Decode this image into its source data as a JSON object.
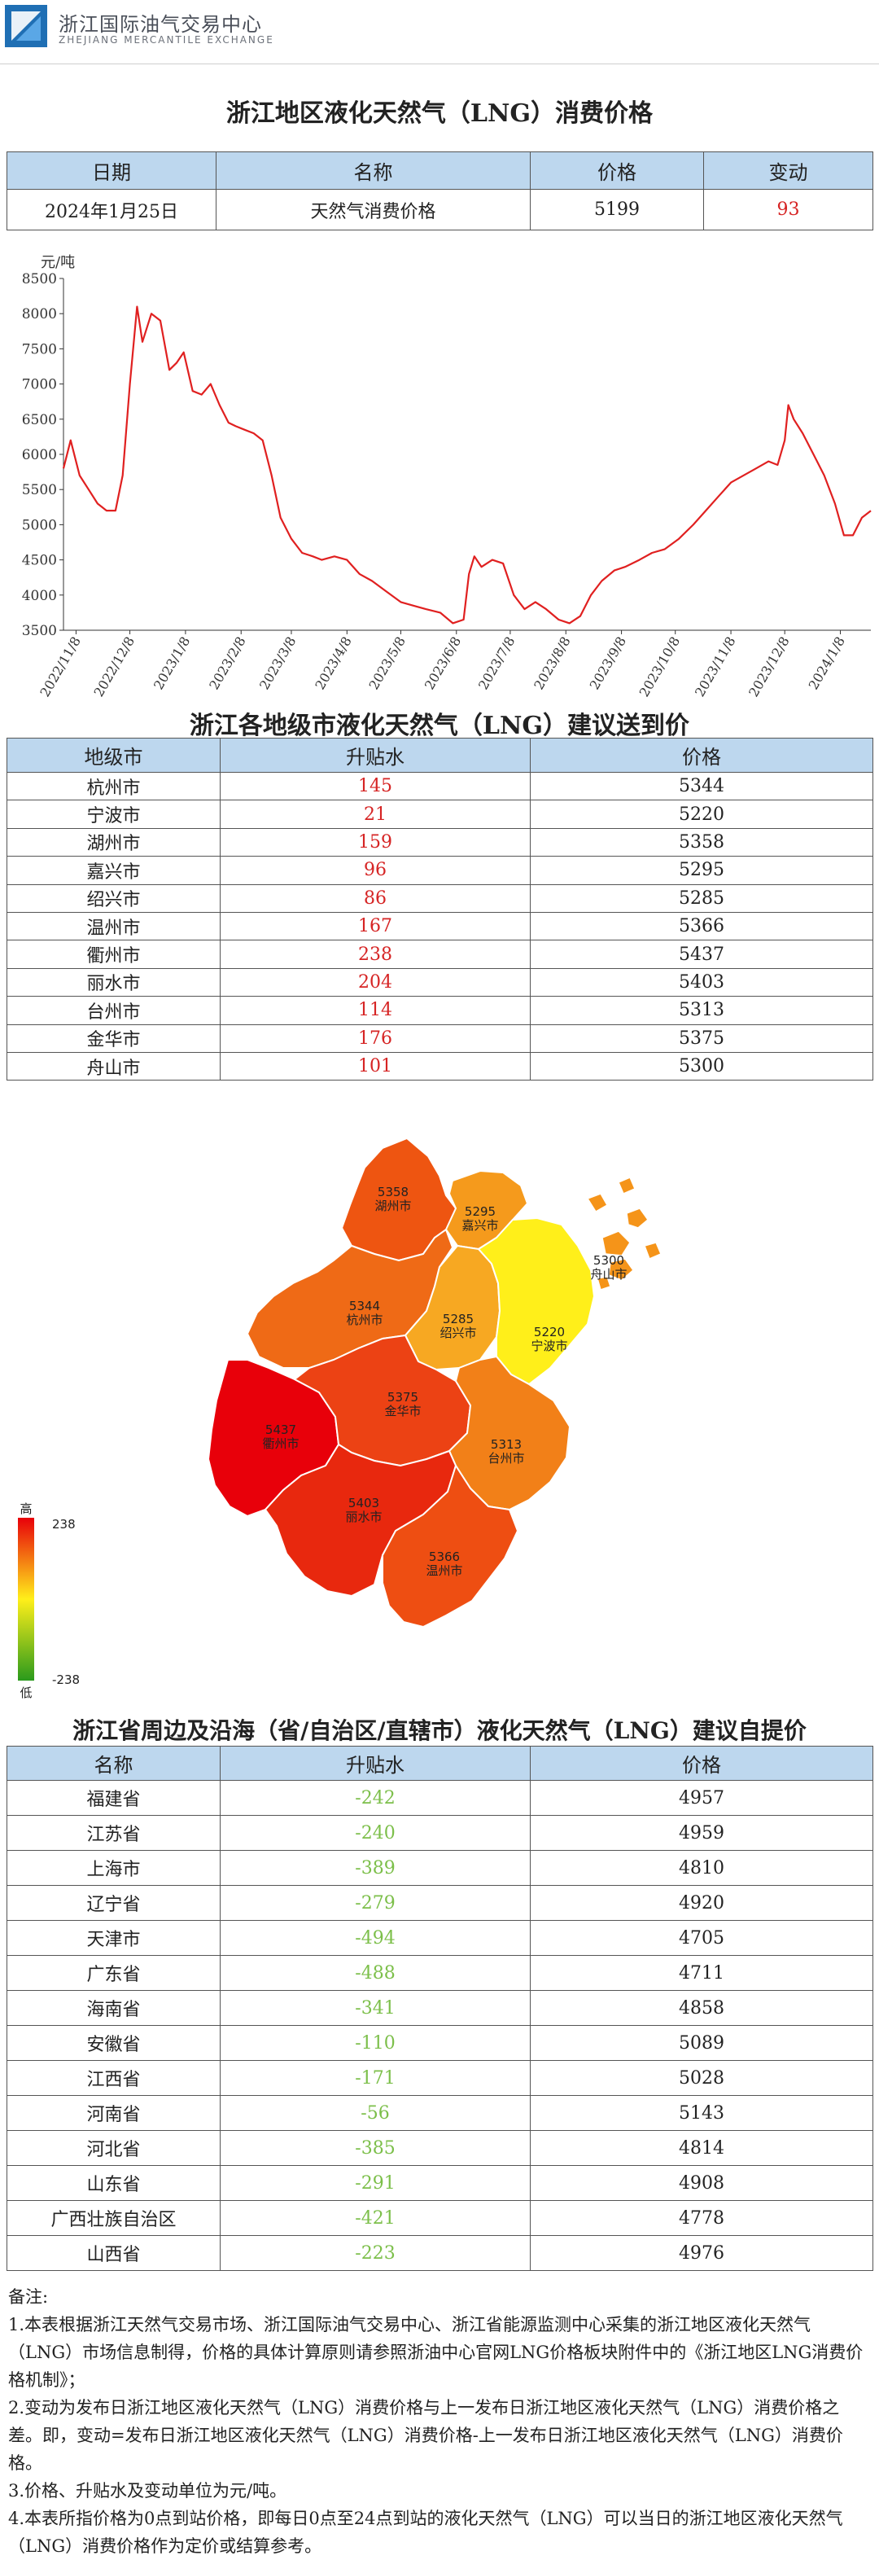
{
  "header": {
    "org_cn": "浙江国际油气交易中心",
    "org_en": "ZHEJIANG MERCANTILE EXCHANGE",
    "logo_color": "#1f6fb4"
  },
  "section1": {
    "title": "浙江地区液化天然气（LNG）消费价格",
    "headers": [
      "日期",
      "名称",
      "价格",
      "变动"
    ],
    "row": {
      "date": "2024年1月25日",
      "name": "天然气消费价格",
      "price": "5199",
      "change": "93"
    }
  },
  "chart_data": {
    "type": "line",
    "ylabel": "元/吨",
    "ylim": [
      3500,
      8500
    ],
    "yticks": [
      3500,
      4000,
      4500,
      5000,
      5500,
      6000,
      6500,
      7000,
      7500,
      8000,
      8500
    ],
    "xticks": [
      "2022/11/8",
      "2022/12/8",
      "2023/1/8",
      "2023/2/8",
      "2023/3/8",
      "2023/4/8",
      "2023/5/8",
      "2023/6/8",
      "2023/7/8",
      "2023/8/8",
      "2023/9/8",
      "2023/10/8",
      "2023/11/8",
      "2023/12/8",
      "2024/1/8"
    ],
    "color": "#e02020",
    "series": [
      {
        "name": "",
        "x": [
          "2022/11/1",
          "2022/11/5",
          "2022/11/10",
          "2022/11/15",
          "2022/11/20",
          "2022/11/25",
          "2022/11/30",
          "2022/12/4",
          "2022/12/8",
          "2022/12/12",
          "2022/12/15",
          "2022/12/20",
          "2022/12/25",
          "2022/12/30",
          "2023/1/3",
          "2023/1/7",
          "2023/1/12",
          "2023/1/17",
          "2023/1/22",
          "2023/1/27",
          "2023/2/1",
          "2023/2/5",
          "2023/2/10",
          "2023/2/15",
          "2023/2/20",
          "2023/2/25",
          "2023/3/2",
          "2023/3/8",
          "2023/3/14",
          "2023/3/20",
          "2023/3/25",
          "2023/4/1",
          "2023/4/8",
          "2023/4/15",
          "2023/4/22",
          "2023/4/30",
          "2023/5/8",
          "2023/5/15",
          "2023/5/22",
          "2023/5/30",
          "2023/6/6",
          "2023/6/12",
          "2023/6/15",
          "2023/6/18",
          "2023/6/22",
          "2023/6/28",
          "2023/7/4",
          "2023/7/10",
          "2023/7/16",
          "2023/7/22",
          "2023/7/28",
          "2023/8/4",
          "2023/8/10",
          "2023/8/16",
          "2023/8/22",
          "2023/8/28",
          "2023/9/4",
          "2023/9/10",
          "2023/9/18",
          "2023/9/25",
          "2023/10/2",
          "2023/10/10",
          "2023/10/18",
          "2023/10/25",
          "2023/11/1",
          "2023/11/8",
          "2023/11/15",
          "2023/11/22",
          "2023/11/29",
          "2023/12/4",
          "2023/12/8",
          "2023/12/10",
          "2023/12/13",
          "2023/12/18",
          "2023/12/24",
          "2023/12/30",
          "2024/1/5",
          "2024/1/10",
          "2024/1/15",
          "2024/1/20",
          "2024/1/25"
        ],
        "y": [
          5800,
          6200,
          5700,
          5500,
          5300,
          5200,
          5200,
          5700,
          7000,
          8100,
          7600,
          8000,
          7900,
          7200,
          7300,
          7450,
          6900,
          6850,
          7000,
          6700,
          6450,
          6400,
          6350,
          6300,
          6200,
          5700,
          5100,
          4800,
          4600,
          4550,
          4500,
          4550,
          4500,
          4300,
          4200,
          4050,
          3900,
          3850,
          3800,
          3750,
          3600,
          3650,
          4300,
          4550,
          4400,
          4500,
          4450,
          4000,
          3800,
          3900,
          3800,
          3650,
          3600,
          3700,
          4000,
          4200,
          4350,
          4400,
          4500,
          4600,
          4650,
          4800,
          5000,
          5200,
          5400,
          5600,
          5700,
          5800,
          5900,
          5850,
          6200,
          6700,
          6500,
          6300,
          6000,
          5700,
          5300,
          4850,
          4850,
          5100,
          5199
        ]
      }
    ]
  },
  "section2": {
    "title": "浙江各地级市液化天然气（LNG）建议送到价",
    "headers": [
      "地级市",
      "升贴水",
      "价格"
    ],
    "rows": [
      {
        "name": "杭州市",
        "diff": "145",
        "price": "5344"
      },
      {
        "name": "宁波市",
        "diff": "21",
        "price": "5220"
      },
      {
        "name": "湖州市",
        "diff": "159",
        "price": "5358"
      },
      {
        "name": "嘉兴市",
        "diff": "96",
        "price": "5295"
      },
      {
        "name": "绍兴市",
        "diff": "86",
        "price": "5285"
      },
      {
        "name": "温州市",
        "diff": "167",
        "price": "5366"
      },
      {
        "name": "衢州市",
        "diff": "238",
        "price": "5437"
      },
      {
        "name": "丽水市",
        "diff": "204",
        "price": "5403"
      },
      {
        "name": "台州市",
        "diff": "114",
        "price": "5313"
      },
      {
        "name": "金华市",
        "diff": "176",
        "price": "5375"
      },
      {
        "name": "舟山市",
        "diff": "101",
        "price": "5300"
      }
    ]
  },
  "map": {
    "legend_high": "高",
    "legend_low": "低",
    "legend_max": "238",
    "legend_min": "-238",
    "regions": [
      {
        "id": "huzhou",
        "price": "5358",
        "name": "湖州市",
        "color": "#ee5511"
      },
      {
        "id": "jiaxing",
        "price": "5295",
        "name": "嘉兴市",
        "color": "#f59a1c"
      },
      {
        "id": "hangzhou",
        "price": "5344",
        "name": "杭州市",
        "color": "#ef6a16"
      },
      {
        "id": "shaoxing",
        "price": "5285",
        "name": "绍兴市",
        "color": "#f7a822"
      },
      {
        "id": "ningbo",
        "price": "5220",
        "name": "宁波市",
        "color": "#ffef1a"
      },
      {
        "id": "zhoushan",
        "price": "5300",
        "name": "舟山市",
        "color": "#f59419"
      },
      {
        "id": "quzhou",
        "price": "5437",
        "name": "衢州市",
        "color": "#e8000a"
      },
      {
        "id": "jinhua",
        "price": "5375",
        "name": "金华市",
        "color": "#ec4214"
      },
      {
        "id": "taizhou",
        "price": "5313",
        "name": "台州市",
        "color": "#f28018"
      },
      {
        "id": "lishui",
        "price": "5403",
        "name": "丽水市",
        "color": "#e8280e"
      },
      {
        "id": "wenzhou",
        "price": "5366",
        "name": "温州市",
        "color": "#ee4e12"
      }
    ]
  },
  "section3": {
    "title": "浙江省周边及沿海（省/自治区/直辖市）液化天然气（LNG）建议自提价",
    "headers": [
      "名称",
      "升贴水",
      "价格"
    ],
    "rows": [
      {
        "name": "福建省",
        "diff": "-242",
        "price": "4957"
      },
      {
        "name": "江苏省",
        "diff": "-240",
        "price": "4959"
      },
      {
        "name": "上海市",
        "diff": "-389",
        "price": "4810"
      },
      {
        "name": "辽宁省",
        "diff": "-279",
        "price": "4920"
      },
      {
        "name": "天津市",
        "diff": "-494",
        "price": "4705"
      },
      {
        "name": "广东省",
        "diff": "-488",
        "price": "4711"
      },
      {
        "name": "海南省",
        "diff": "-341",
        "price": "4858"
      },
      {
        "name": "安徽省",
        "diff": "-110",
        "price": "5089"
      },
      {
        "name": "江西省",
        "diff": "-171",
        "price": "5028"
      },
      {
        "name": "河南省",
        "diff": "-56",
        "price": "5143"
      },
      {
        "name": "河北省",
        "diff": "-385",
        "price": "4814"
      },
      {
        "name": "山东省",
        "diff": "-291",
        "price": "4908"
      },
      {
        "name": "广西壮族自治区",
        "diff": "-421",
        "price": "4778"
      },
      {
        "name": "山西省",
        "diff": "-223",
        "price": "4976"
      }
    ]
  },
  "notes": {
    "label": "备注:",
    "items": [
      "1.本表根据浙江天然气交易市场、浙江国际油气交易中心、浙江省能源监测中心采集的浙江地区液化天然气（LNG）市场信息制得，价格的具体计算原则请参照浙油中心官网LNG价格板块附件中的《浙江地区LNG消费价格机制》；",
      "2.变动为发布日浙江地区液化天然气（LNG）消费价格与上一发布日浙江地区液化天然气（LNG）消费价格之差。即，变动=发布日浙江地区液化天然气（LNG）消费价格-上一发布日浙江地区液化天然气（LNG）消费价格。",
      "3.价格、升贴水及变动单位为元/吨。",
      "4.本表所指价格为0点到站价格，即每日0点至24点到站的液化天然气（LNG）可以当日的浙江地区液化天然气（LNG）消费价格作为定价或结算参考。"
    ]
  }
}
